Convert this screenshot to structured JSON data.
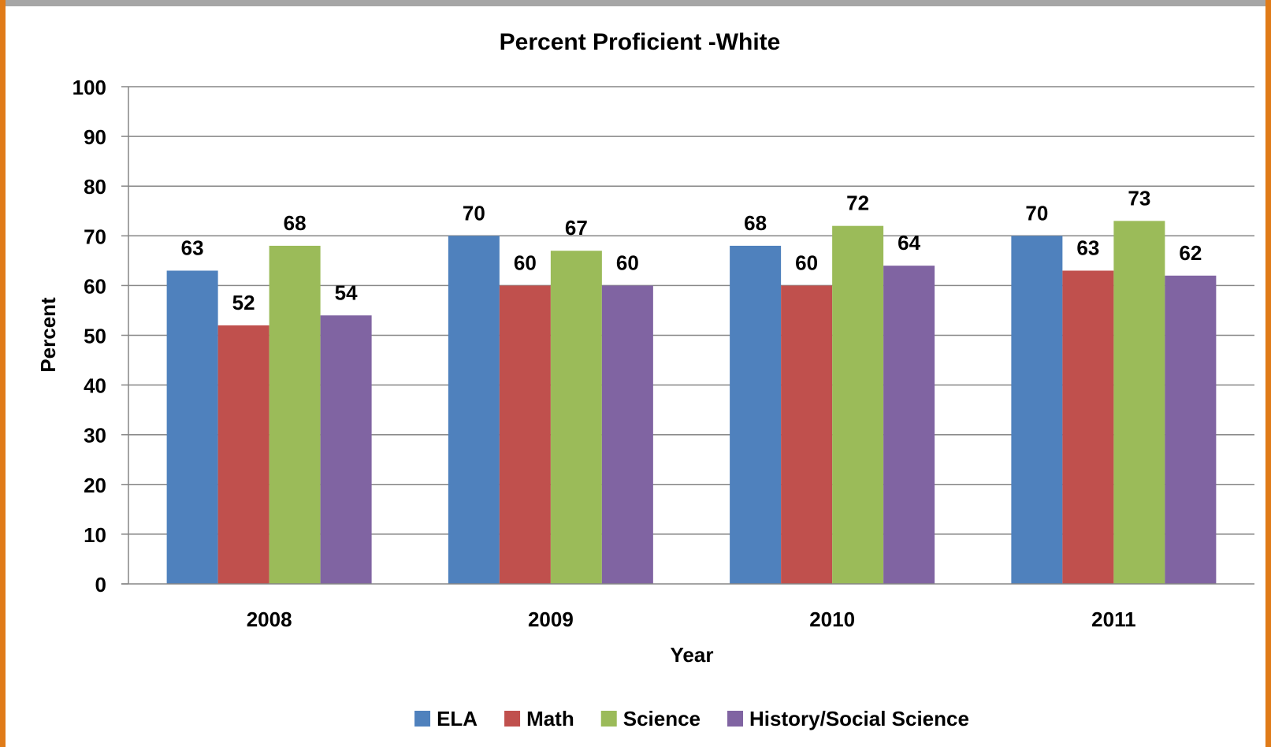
{
  "chart_data": {
    "type": "bar",
    "title": "Percent Proficient -White",
    "xlabel": "Year",
    "ylabel": "Percent",
    "categories": [
      "2008",
      "2009",
      "2010",
      "2011"
    ],
    "ylim": [
      0,
      100
    ],
    "yticks": [
      0,
      10,
      20,
      30,
      40,
      50,
      60,
      70,
      80,
      90,
      100
    ],
    "grid": true,
    "legend_position": "bottom",
    "data_labels": true,
    "series": [
      {
        "name": "ELA",
        "color": "#4f81bd",
        "values": [
          63,
          70,
          68,
          70
        ]
      },
      {
        "name": "Math",
        "color": "#c0504d",
        "values": [
          52,
          60,
          60,
          63
        ]
      },
      {
        "name": "Science",
        "color": "#9bbb59",
        "values": [
          68,
          67,
          72,
          73
        ]
      },
      {
        "name": "History/Social Science",
        "color": "#8064a2",
        "values": [
          54,
          60,
          64,
          62
        ]
      }
    ]
  }
}
